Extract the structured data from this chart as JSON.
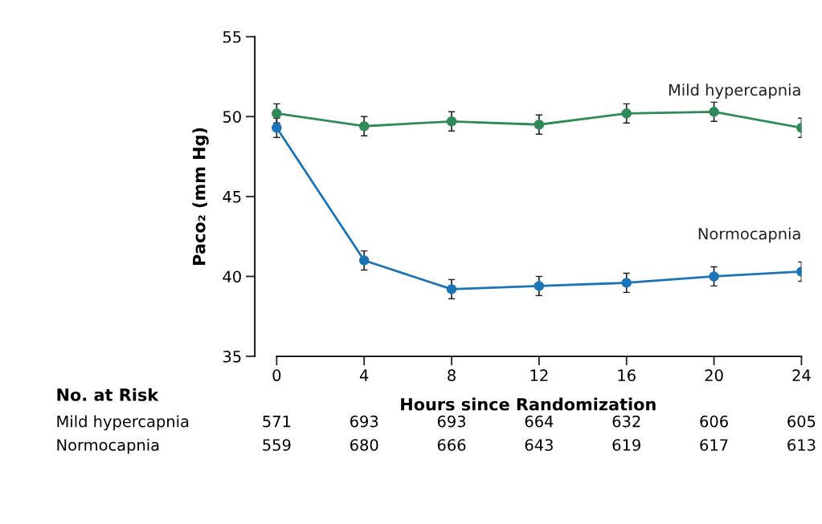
{
  "chart_data": {
    "type": "line",
    "xlabel": "Hours since Randomization",
    "ylabel": "Paco₂ (mm Hg)",
    "x": [
      0,
      4,
      8,
      12,
      16,
      20,
      24
    ],
    "xlim": [
      -1,
      24
    ],
    "xticks": [
      0,
      4,
      8,
      12,
      16,
      20,
      24
    ],
    "ylim": [
      35,
      55
    ],
    "yticks": [
      35,
      40,
      45,
      50,
      55
    ],
    "grid": false,
    "legend": false,
    "marker": "circle",
    "line_style": "solid",
    "series": [
      {
        "name": "Mild hypercapnia",
        "color": "#2e8b57",
        "values": [
          50.2,
          49.4,
          49.7,
          49.5,
          50.2,
          50.3,
          49.3
        ],
        "errors": [
          0.6,
          0.6,
          0.6,
          0.6,
          0.6,
          0.6,
          0.6
        ]
      },
      {
        "name": "Normocapnia",
        "color": "#1a75b8",
        "values": [
          49.3,
          41.0,
          39.2,
          39.4,
          39.6,
          40.0,
          40.3
        ],
        "errors": [
          0.6,
          0.6,
          0.6,
          0.6,
          0.6,
          0.6,
          0.6
        ]
      }
    ],
    "annotations": [
      "No. at Risk",
      "Mild hypercapnia",
      "571",
      "693",
      "693",
      "664",
      "632",
      "606",
      "605",
      "Normocapnia",
      "559",
      "680",
      "666",
      "643",
      "619",
      "617",
      "613"
    ]
  }
}
